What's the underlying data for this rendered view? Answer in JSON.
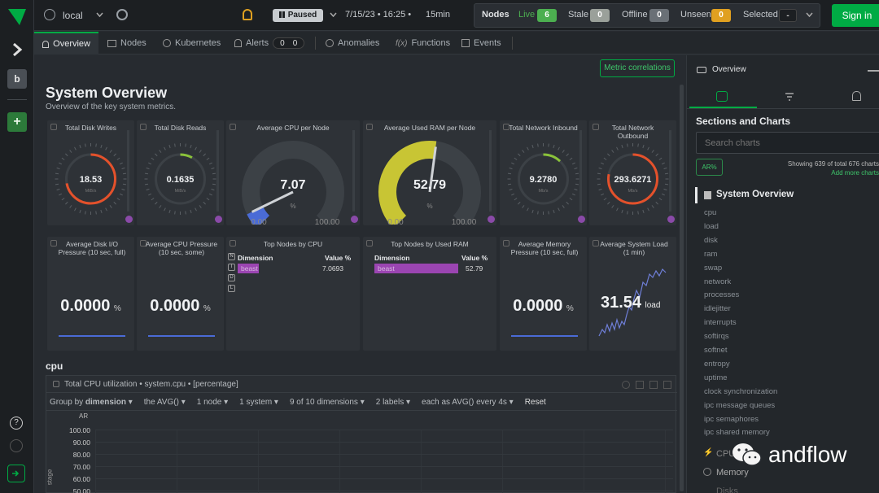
{
  "rail": {
    "workspace_initial": "b",
    "add_label": "+",
    "help_label": "?"
  },
  "topbar": {
    "space": "local",
    "status": "Paused",
    "datetime": "7/15/23 • 16:25 •",
    "duration": "15min",
    "nodes_label": "Nodes",
    "live_label": "Live",
    "live_count": "6",
    "stale_label": "Stale",
    "stale_count": "0",
    "offline_label": "Offline",
    "offline_count": "0",
    "unseen_label": "Unseen",
    "unseen_count": "0",
    "selected_label": "Selected",
    "selected_count": "-",
    "signin": "Sign in"
  },
  "tabs": {
    "overview": "Overview",
    "nodes": "Nodes",
    "kubernetes": "Kubernetes",
    "alerts": "Alerts",
    "alerts_count_a": "0",
    "alerts_count_b": "0",
    "anomalies": "Anomalies",
    "functions": "Functions",
    "events": "Events"
  },
  "main": {
    "metric_correlations": "Metric correlations",
    "title": "System Overview",
    "subtitle": "Overview of the key system metrics.",
    "section_cpu": "cpu"
  },
  "cards_row1": [
    {
      "title": "Total Disk Writes",
      "value": "18.53",
      "unit": "MiB/s",
      "fill": 0.72
    },
    {
      "title": "Total Disk Reads",
      "value": "0.1635",
      "unit": "MiB/s",
      "fill": 0.08
    },
    {
      "title": "Average CPU per Node",
      "value": "7.07",
      "unit": "%",
      "min": "0.00",
      "max": "100.00",
      "fill": 0.0707
    },
    {
      "title": "Average Used RAM per Node",
      "value": "52.79",
      "unit": "%",
      "min": "0.00",
      "max": "100.00",
      "fill": 0.5279
    },
    {
      "title": "Total Network Inbound",
      "value": "9.2780",
      "unit": "Mb/s",
      "fill": 0.12
    },
    {
      "title": "Total Network Outbound",
      "value": "293.6271",
      "unit": "Mb/s",
      "fill": 0.78
    }
  ],
  "cards_row2": {
    "disk_io": {
      "title": "Average Disk I/O Pressure (10 sec, full)",
      "value": "0.0000",
      "unit": "%"
    },
    "cpu_pressure": {
      "title": "Average CPU Pressure (10 sec, some)",
      "value": "0.0000",
      "unit": "%"
    },
    "top_cpu": {
      "title": "Top Nodes by CPU",
      "col_dim": "Dimension",
      "col_val": "Value %",
      "row_name": "beast",
      "row_value": "7.0693",
      "fill": 0.25
    },
    "top_ram": {
      "title": "Top Nodes by Used RAM",
      "col_dim": "Dimension",
      "col_val": "Value %",
      "row_name": "beast",
      "row_value": "52.79",
      "fill": 0.85
    },
    "mem_pressure": {
      "title": "Average Memory Pressure (10 sec, full)",
      "value": "0.0000",
      "unit": "%"
    },
    "sys_load": {
      "title": "Average System Load (1 min)",
      "value": "31.54",
      "unit": "load"
    }
  },
  "cpu_chart": {
    "title": "Total CPU utilization • system.cpu • [percentage]",
    "group_by": "Group by",
    "group_val": "dimension",
    "agg": "the AVG()",
    "nodes": "1 node",
    "systems": "1 system",
    "dims": "9 of 10 dimensions",
    "labels": "2 labels",
    "each": "each as AVG() every 4s",
    "reset": "Reset",
    "ar": "AR",
    "ylabel": "stage",
    "ticks": [
      "100.00",
      "90.00",
      "80.00",
      "70.00",
      "60.00",
      "50.00"
    ]
  },
  "rpanel": {
    "title": "Overview",
    "sections_title": "Sections and Charts",
    "search_placeholder": "Search charts",
    "ar_btn": "AR%",
    "showing": "Showing 639 of total 676 charts",
    "add_more": "Add more charts",
    "active_section": "System Overview",
    "items": [
      "cpu",
      "load",
      "disk",
      "ram",
      "swap",
      "network",
      "processes",
      "idlejitter",
      "interrupts",
      "softirqs",
      "softnet",
      "entropy",
      "uptime",
      "clock synchronization",
      "ipc message queues",
      "ipc semaphores",
      "ipc shared memory"
    ],
    "group_cpu": "CPU",
    "group_memory": "Memory",
    "group_disks": "Disks"
  },
  "watermark": "andflow",
  "colors": {
    "accent": "#00ab44",
    "live": "#4caf50",
    "unseen": "#e0a020",
    "gauge_yellow": "#c8c534",
    "gauge_blue": "#4a6bd6",
    "ring_red": "#e4512b",
    "purple": "#9b45b2"
  }
}
